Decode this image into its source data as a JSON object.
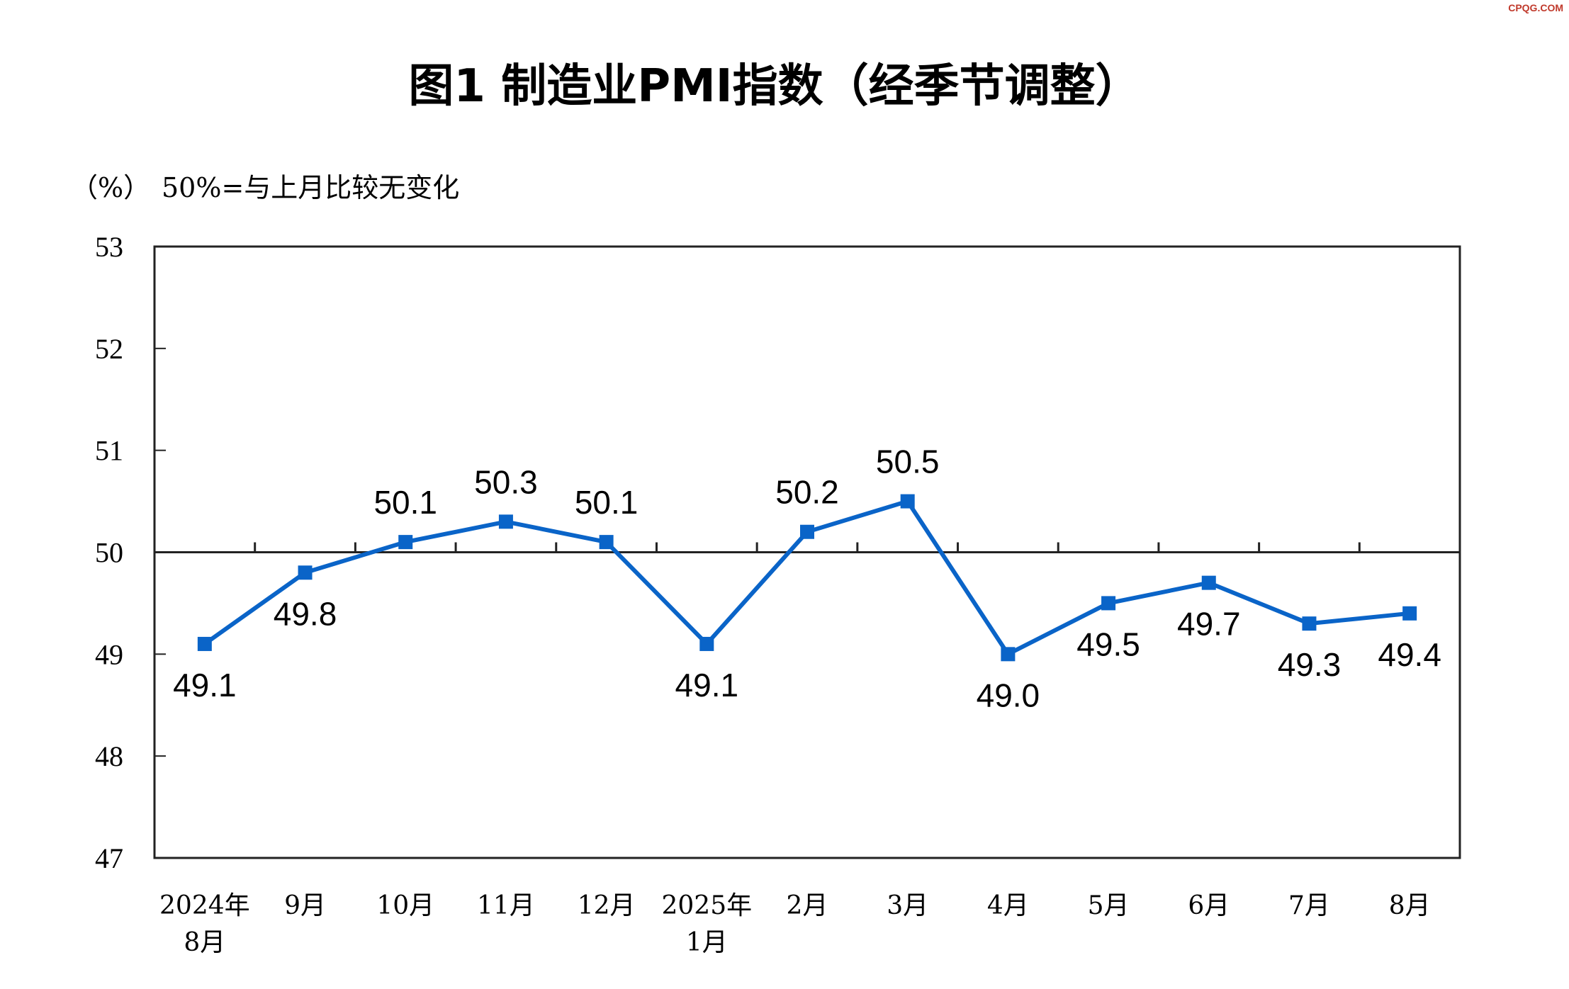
{
  "watermark": "CPQG.COM",
  "chart_data": {
    "type": "line",
    "title": "图1  制造业PMI指数（经季节调整）",
    "unit_label": "（%）",
    "reference_note": "50%=与上月比较无变化",
    "categories": [
      "2024年\n8月",
      "9月",
      "10月",
      "11月",
      "12月",
      "2025年\n1月",
      "2月",
      "3月",
      "4月",
      "5月",
      "6月",
      "7月",
      "8月"
    ],
    "series": [
      {
        "values": [
          49.1,
          49.8,
          50.1,
          50.3,
          50.1,
          49.1,
          50.2,
          50.5,
          49.0,
          49.5,
          49.7,
          49.3,
          49.4
        ]
      }
    ],
    "data_labels": [
      "49.1",
      "49.8",
      "50.1",
      "50.3",
      "50.1",
      "49.1",
      "50.2",
      "50.5",
      "49.0",
      "49.5",
      "49.7",
      "49.3",
      "49.4"
    ],
    "label_side": [
      "below",
      "below",
      "above",
      "above",
      "above",
      "below",
      "above",
      "above",
      "below",
      "below",
      "below",
      "below",
      "below"
    ],
    "yticks": [
      53,
      52,
      51,
      50,
      49,
      48,
      47
    ],
    "ylim": [
      47,
      53
    ],
    "reference_line": 50,
    "grid": false,
    "series_color": "#0a64c8"
  }
}
